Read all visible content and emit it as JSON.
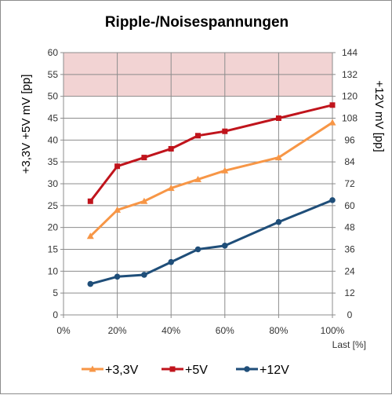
{
  "chart_data": {
    "type": "line",
    "title": "Ripple-/Noisespannungen",
    "xlabel": "Last [%]",
    "ylabel_left": "+3,3V +5V   mV [pp]",
    "ylabel_right": "+12V   mV [pp]",
    "x": [
      10,
      20,
      30,
      40,
      50,
      60,
      80,
      100
    ],
    "xlim": [
      0,
      100
    ],
    "x_ticks": [
      "0%",
      "20%",
      "40%",
      "60%",
      "80%",
      "100%"
    ],
    "ylim_left": [
      0,
      60
    ],
    "y_ticks_left": [
      "0",
      "5",
      "10",
      "15",
      "20",
      "25",
      "30",
      "35",
      "40",
      "45",
      "50",
      "55",
      "60"
    ],
    "ylim_right": [
      0,
      144
    ],
    "y_ticks_right": [
      "0",
      "12",
      "24",
      "36",
      "48",
      "60",
      "72",
      "84",
      "96",
      "108",
      "120",
      "132",
      "144"
    ],
    "limit_band_left": [
      50,
      60
    ],
    "grid": true,
    "legend_position": "bottom",
    "series": [
      {
        "name": "+3,3V",
        "axis": "left",
        "color": "#f79646",
        "marker": "triangle",
        "values": [
          18,
          24,
          26,
          29,
          31,
          33,
          36,
          44
        ]
      },
      {
        "name": "+5V",
        "axis": "left",
        "color": "#c0141c",
        "marker": "square",
        "values": [
          26,
          34,
          36,
          38,
          41,
          42,
          45,
          48
        ]
      },
      {
        "name": "+12V",
        "axis": "right",
        "color": "#1f4e79",
        "marker": "circle",
        "values": [
          17,
          21,
          22,
          29,
          36,
          38,
          51,
          63
        ]
      }
    ]
  }
}
